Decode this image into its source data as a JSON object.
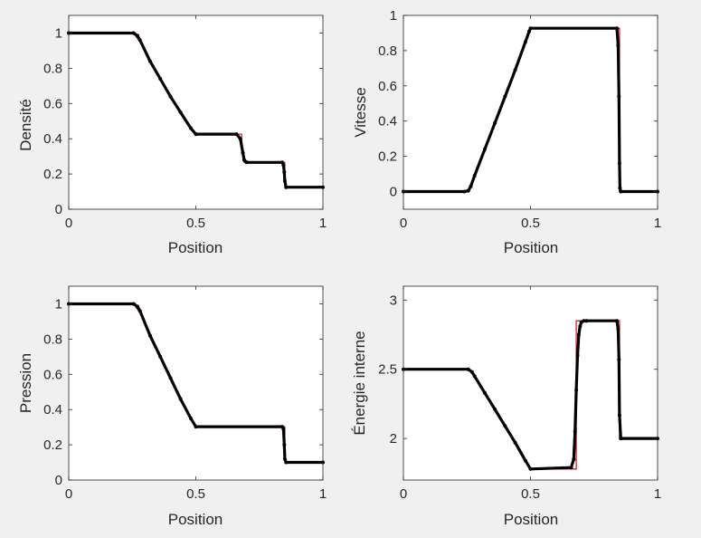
{
  "figure": {
    "background": "#f0f0f0",
    "axes_background": "#ffffff",
    "exact_color": "#d62020",
    "numeric_color": "#000000"
  },
  "chart_data": [
    {
      "type": "line",
      "xlabel": "Position",
      "ylabel": "Densité",
      "xlim": [
        0,
        1
      ],
      "ylim": [
        0,
        1.1
      ],
      "xticks": [
        "0",
        "0.5",
        "1"
      ],
      "yticks": [
        "0",
        "0.2",
        "0.4",
        "0.6",
        "0.8",
        "1"
      ],
      "series": [
        {
          "kind": "line",
          "color": "#d62020",
          "x": [
            0,
            0.255,
            0.28,
            0.32,
            0.36,
            0.4,
            0.44,
            0.48,
            0.5,
            0.68,
            0.68,
            0.69,
            0.85,
            0.85,
            1
          ],
          "y": [
            1,
            1,
            0.95,
            0.84,
            0.74,
            0.64,
            0.55,
            0.46,
            0.426,
            0.426,
            0.4,
            0.266,
            0.266,
            0.125,
            0.125
          ]
        },
        {
          "kind": "markers",
          "color": "#000000",
          "x": [
            0,
            0.255,
            0.27,
            0.28,
            0.32,
            0.36,
            0.4,
            0.44,
            0.48,
            0.5,
            0.66,
            0.675,
            0.685,
            0.69,
            0.7,
            0.84,
            0.845,
            0.848,
            0.85,
            0.855,
            1
          ],
          "y": [
            1,
            1,
            0.985,
            0.96,
            0.84,
            0.74,
            0.64,
            0.55,
            0.46,
            0.426,
            0.426,
            0.4,
            0.32,
            0.28,
            0.266,
            0.266,
            0.25,
            0.21,
            0.16,
            0.125,
            0.125
          ]
        }
      ]
    },
    {
      "type": "line",
      "xlabel": "Position",
      "ylabel": "Vitesse",
      "xlim": [
        0,
        1
      ],
      "ylim": [
        -0.1,
        1.0
      ],
      "xticks": [
        "0",
        "0.5",
        "1"
      ],
      "yticks": [
        "0",
        "0.2",
        "0.4",
        "0.6",
        "0.8",
        "1"
      ],
      "series": [
        {
          "kind": "line",
          "color": "#d62020",
          "x": [
            0,
            0.255,
            0.5,
            0.85,
            0.85,
            1
          ],
          "y": [
            0,
            0,
            0.927,
            0.927,
            0,
            0
          ]
        },
        {
          "kind": "markers",
          "color": "#000000",
          "x": [
            0,
            0.24,
            0.255,
            0.265,
            0.28,
            0.32,
            0.36,
            0.4,
            0.44,
            0.48,
            0.495,
            0.5,
            0.84,
            0.845,
            0.848,
            0.85,
            0.852,
            0.855,
            1
          ],
          "y": [
            0,
            0,
            0.005,
            0.03,
            0.09,
            0.24,
            0.39,
            0.54,
            0.69,
            0.85,
            0.91,
            0.927,
            0.927,
            0.83,
            0.54,
            0.16,
            0.02,
            0,
            0
          ]
        }
      ]
    },
    {
      "type": "line",
      "xlabel": "Position",
      "ylabel": "Pression",
      "xlim": [
        0,
        1
      ],
      "ylim": [
        0,
        1.1
      ],
      "xticks": [
        "0",
        "0.5",
        "1"
      ],
      "yticks": [
        "0",
        "0.2",
        "0.4",
        "0.6",
        "0.8",
        "1"
      ],
      "series": [
        {
          "kind": "line",
          "color": "#d62020",
          "x": [
            0,
            0.255,
            0.28,
            0.32,
            0.36,
            0.4,
            0.44,
            0.48,
            0.5,
            0.85,
            0.85,
            1
          ],
          "y": [
            1,
            1,
            0.95,
            0.82,
            0.7,
            0.58,
            0.46,
            0.35,
            0.303,
            0.303,
            0.1,
            0.1
          ]
        },
        {
          "kind": "markers",
          "color": "#000000",
          "x": [
            0,
            0.255,
            0.27,
            0.28,
            0.32,
            0.36,
            0.4,
            0.44,
            0.48,
            0.5,
            0.84,
            0.845,
            0.848,
            0.85,
            0.855,
            1
          ],
          "y": [
            1,
            1,
            0.985,
            0.96,
            0.82,
            0.7,
            0.58,
            0.46,
            0.35,
            0.303,
            0.303,
            0.29,
            0.2,
            0.12,
            0.1,
            0.1
          ]
        }
      ]
    },
    {
      "type": "line",
      "xlabel": "Position",
      "ylabel": "Énergie interne",
      "xlim": [
        0,
        1
      ],
      "ylim": [
        1.7,
        3.1
      ],
      "xticks": [
        "0",
        "0.5",
        "1"
      ],
      "yticks": [
        "2",
        "2.5",
        "3"
      ],
      "series": [
        {
          "kind": "line",
          "color": "#d62020",
          "x": [
            0,
            0.255,
            0.28,
            0.32,
            0.36,
            0.4,
            0.44,
            0.48,
            0.5,
            0.68,
            0.68,
            0.85,
            0.85,
            1
          ],
          "y": [
            2.5,
            2.5,
            2.45,
            2.33,
            2.21,
            2.09,
            1.97,
            1.84,
            1.78,
            1.78,
            2.85,
            2.85,
            2.0,
            2.0
          ]
        },
        {
          "kind": "markers",
          "color": "#000000",
          "x": [
            0,
            0.255,
            0.27,
            0.28,
            0.32,
            0.36,
            0.4,
            0.44,
            0.48,
            0.5,
            0.66,
            0.67,
            0.675,
            0.68,
            0.685,
            0.69,
            0.695,
            0.7,
            0.71,
            0.72,
            0.84,
            0.845,
            0.848,
            0.85,
            0.855,
            1
          ],
          "y": [
            2.5,
            2.5,
            2.48,
            2.45,
            2.33,
            2.21,
            2.09,
            1.97,
            1.84,
            1.78,
            1.79,
            1.85,
            2.05,
            2.35,
            2.6,
            2.75,
            2.81,
            2.84,
            2.85,
            2.85,
            2.85,
            2.79,
            2.57,
            2.17,
            2.0,
            2.0
          ]
        }
      ]
    }
  ]
}
